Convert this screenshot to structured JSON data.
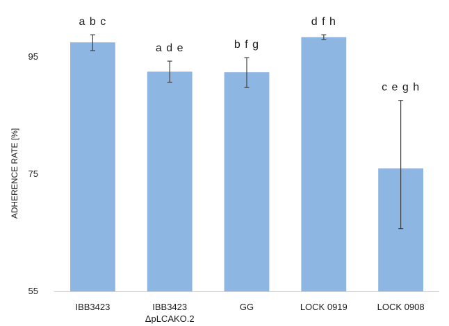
{
  "chart_data": {
    "type": "bar",
    "ylabel": "ADHERENCE RATE [%]",
    "xlabel": "",
    "ylim": [
      55,
      100
    ],
    "yticks": [
      55,
      75,
      95
    ],
    "categories": [
      [
        "IBB3423"
      ],
      [
        "IBB3423",
        "ΔpLCAKO.2"
      ],
      [
        "GG"
      ],
      [
        "LOCK 0919"
      ],
      [
        "LOCK 0908"
      ]
    ],
    "values": [
      97.5,
      92.5,
      92.4,
      98.4,
      76.0
    ],
    "error_low": [
      96.1,
      90.7,
      89.8,
      98.0,
      65.7
    ],
    "error_high": [
      98.8,
      94.3,
      94.9,
      98.8,
      87.6
    ],
    "significance_labels": [
      "a b c",
      "a d e",
      "b f g",
      "d f h",
      "c e g h"
    ],
    "bar_color": "#8DB6E2",
    "error_color": "#404040",
    "grid": false,
    "legend": "none"
  }
}
